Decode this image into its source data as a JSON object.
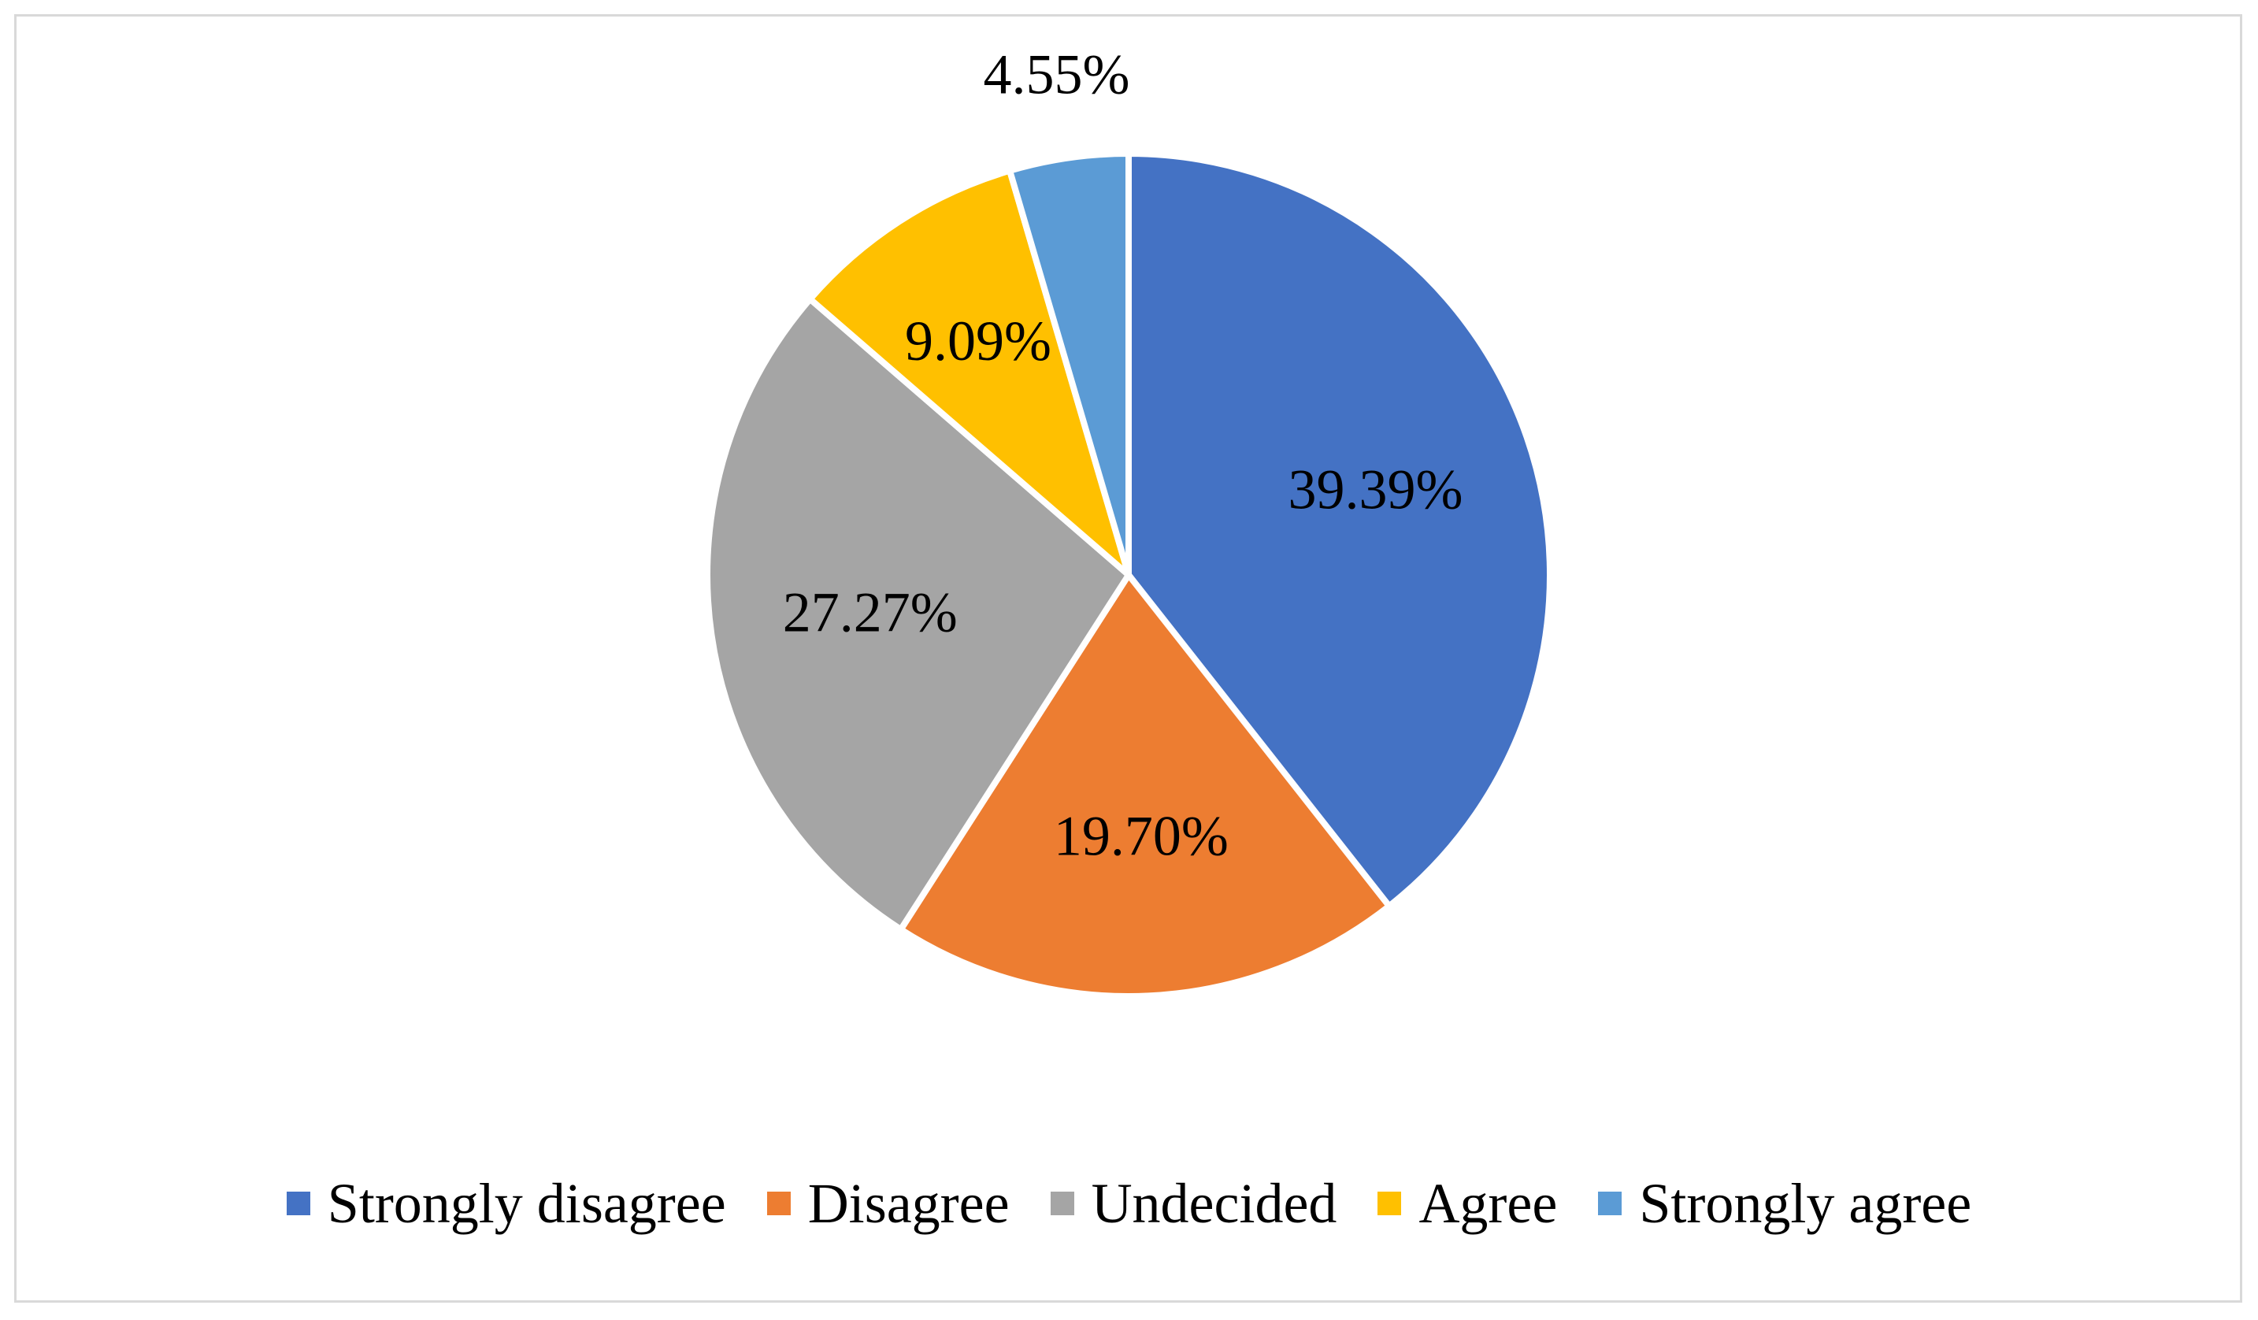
{
  "chart_data": {
    "type": "pie",
    "title": "",
    "categories": [
      "Strongly disagree",
      "Disagree",
      "Undecided",
      "Agree",
      "Strongly agree"
    ],
    "values": [
      39.39,
      19.7,
      27.27,
      9.09,
      4.55
    ],
    "value_labels": [
      "39.39%",
      "19.70%",
      "27.27%",
      "9.09%",
      "4.55%"
    ],
    "colors": [
      "#4472c4",
      "#ed7d31",
      "#a5a5a5",
      "#ffc000",
      "#5b9bd5"
    ],
    "start_angle": "12 o'clock",
    "direction": "clockwise",
    "legend_position": "bottom"
  },
  "legend": {
    "items": [
      {
        "label": "Strongly disagree",
        "color": "#4472c4"
      },
      {
        "label": "Disagree",
        "color": "#ed7d31"
      },
      {
        "label": "Undecided",
        "color": "#a5a5a5"
      },
      {
        "label": "Agree",
        "color": "#ffc000"
      },
      {
        "label": "Strongly agree",
        "color": "#5b9bd5"
      }
    ]
  }
}
